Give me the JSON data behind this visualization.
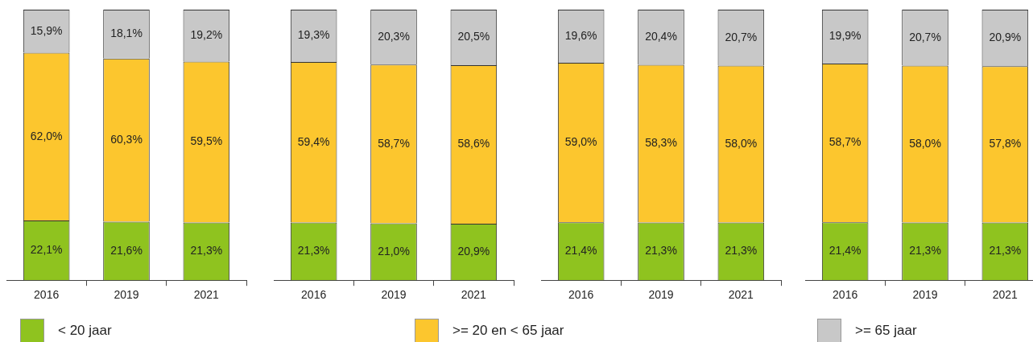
{
  "chart_data": [
    {
      "type": "bar",
      "stacked": true,
      "categories": [
        "2016",
        "2019",
        "2021"
      ],
      "ylim": [
        0,
        100
      ],
      "tick_labels": "x",
      "grid": false,
      "legend": "bottom",
      "series": [
        {
          "name": "< 20 jaar",
          "color": "#8fc31f",
          "values": [
            22.1,
            21.6,
            21.3
          ],
          "value_labels": [
            "22,1%",
            "21,6%",
            "21,3%"
          ]
        },
        {
          "name": ">= 20 en < 65 jaar",
          "color": "#fcc62e",
          "values": [
            62.0,
            60.3,
            59.5
          ],
          "value_labels": [
            "62,0%",
            "60,3%",
            "59,5%"
          ]
        },
        {
          "name": ">= 65 jaar",
          "color": "#c8c8c8",
          "values": [
            15.9,
            18.1,
            19.2
          ],
          "value_labels": [
            "15,9%",
            "18,1%",
            "19,2%"
          ]
        }
      ]
    },
    {
      "type": "bar",
      "stacked": true,
      "categories": [
        "2016",
        "2019",
        "2021"
      ],
      "ylim": [
        0,
        100
      ],
      "tick_labels": "x",
      "grid": false,
      "series": [
        {
          "color": "#8fc31f",
          "values": [
            21.3,
            21.0,
            20.9
          ],
          "value_labels": [
            "21,3%",
            "21,0%",
            "20,9%"
          ]
        },
        {
          "color": "#fcc62e",
          "values": [
            59.4,
            58.7,
            58.6
          ],
          "value_labels": [
            "59,4%",
            "58,7%",
            "58,6%"
          ]
        },
        {
          "color": "#c8c8c8",
          "values": [
            19.3,
            20.3,
            20.5
          ],
          "value_labels": [
            "19,3%",
            "20,3%",
            "20,5%"
          ]
        }
      ]
    },
    {
      "type": "bar",
      "stacked": true,
      "categories": [
        "2016",
        "2019",
        "2021"
      ],
      "ylim": [
        0,
        100
      ],
      "tick_labels": "x",
      "grid": false,
      "series": [
        {
          "color": "#8fc31f",
          "values": [
            21.4,
            21.3,
            21.3
          ],
          "value_labels": [
            "21,4%",
            "21,3%",
            "21,3%"
          ]
        },
        {
          "color": "#fcc62e",
          "values": [
            59.0,
            58.3,
            58.0
          ],
          "value_labels": [
            "59,0%",
            "58,3%",
            "58,0%"
          ]
        },
        {
          "color": "#c8c8c8",
          "values": [
            19.6,
            20.4,
            20.7
          ],
          "value_labels": [
            "19,6%",
            "20,4%",
            "20,7%"
          ]
        }
      ]
    },
    {
      "type": "bar",
      "stacked": true,
      "categories": [
        "2016",
        "2019",
        "2021"
      ],
      "ylim": [
        0,
        100
      ],
      "tick_labels": "x",
      "grid": false,
      "series": [
        {
          "color": "#8fc31f",
          "values": [
            21.4,
            21.3,
            21.3
          ],
          "value_labels": [
            "21,4%",
            "21,3%",
            "21,3%"
          ]
        },
        {
          "color": "#fcc62e",
          "values": [
            58.7,
            58.0,
            57.8
          ],
          "value_labels": [
            "58,7%",
            "58,0%",
            "57,8%"
          ]
        },
        {
          "color": "#c8c8c8",
          "values": [
            19.9,
            20.7,
            20.9
          ],
          "value_labels": [
            "19,9%",
            "20,7%",
            "20,9%"
          ]
        }
      ]
    }
  ]
}
